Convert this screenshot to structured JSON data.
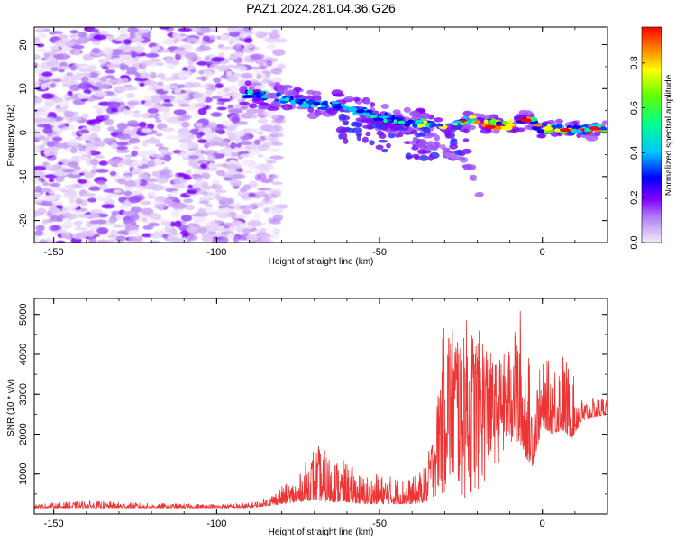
{
  "chart_data": [
    {
      "type": "heatmap",
      "title": "PAZ1.2024.281.04.36.G26",
      "xlabel": "Height of straight line (km)",
      "ylabel": "Frequency (Hz)",
      "xlim": [
        -156,
        20
      ],
      "ylim": [
        -25,
        24
      ],
      "x_ticks": [
        -150,
        -100,
        -50,
        0
      ],
      "y_ticks": [
        -20,
        -10,
        0,
        10,
        20
      ],
      "colorbar": {
        "label": "Normalized spectral amplitude",
        "range": [
          0,
          0.96
        ],
        "ticks": [
          "0.0",
          "0.2",
          "0.4",
          "0.6",
          "0.8"
        ],
        "colors": [
          "#f5ecfb",
          "#8000ff",
          "#0000ff",
          "#00c8ff",
          "#00ff90",
          "#60ff00",
          "#ffff00",
          "#ff8000",
          "#ff0000"
        ]
      },
      "features": {
        "noise_region_x": [
          -156,
          -84
        ],
        "signal_track": [
          [
            -92,
            9
          ],
          [
            -82,
            8
          ],
          [
            -72,
            6.5
          ],
          [
            -62,
            6
          ],
          [
            -52,
            4
          ],
          [
            -42,
            2.5
          ],
          [
            -32,
            1.5
          ],
          [
            -22,
            3
          ],
          [
            -12,
            1.5
          ],
          [
            -5,
            3
          ],
          [
            0,
            1
          ],
          [
            10,
            0.5
          ],
          [
            20,
            1
          ]
        ],
        "branch_track": [
          [
            -40,
            -2
          ],
          [
            -30,
            -4
          ],
          [
            -22,
            -8
          ],
          [
            -18,
            -17
          ]
        ]
      }
    },
    {
      "type": "line",
      "title": "",
      "xlabel": "Height of straight line (km)",
      "ylabel": "SNR (10 * v/v)",
      "xlim": [
        -156,
        20
      ],
      "ylim": [
        0,
        5400
      ],
      "x_ticks": [
        -150,
        -100,
        -50,
        0
      ],
      "y_ticks": [
        1000,
        2000,
        3000,
        4000,
        5000
      ],
      "color": "#ee3333",
      "envelope": {
        "x": [
          -156,
          -140,
          -120,
          -100,
          -90,
          -85,
          -80,
          -75,
          -70,
          -65,
          -60,
          -55,
          -50,
          -45,
          -40,
          -36,
          -33,
          -30,
          -27,
          -24,
          -21,
          -18,
          -15,
          -12,
          -9,
          -7,
          -5,
          -3,
          0,
          3,
          6,
          9,
          12,
          15,
          20
        ],
        "min": [
          150,
          150,
          150,
          150,
          150,
          200,
          250,
          300,
          350,
          300,
          300,
          250,
          250,
          250,
          250,
          300,
          400,
          400,
          400,
          300,
          400,
          700,
          1200,
          1300,
          1600,
          1800,
          1400,
          1200,
          2200,
          2000,
          2100,
          1900,
          2300,
          2400,
          2500
        ],
        "max": [
          250,
          330,
          270,
          250,
          280,
          400,
          700,
          900,
          1800,
          1500,
          1300,
          1000,
          1000,
          950,
          900,
          1200,
          2200,
          5000,
          4800,
          5000,
          4600,
          4600,
          3800,
          4000,
          4300,
          5400,
          4500,
          3300,
          3800,
          3900,
          4200,
          3600,
          2900,
          2900,
          3000
        ]
      }
    }
  ]
}
